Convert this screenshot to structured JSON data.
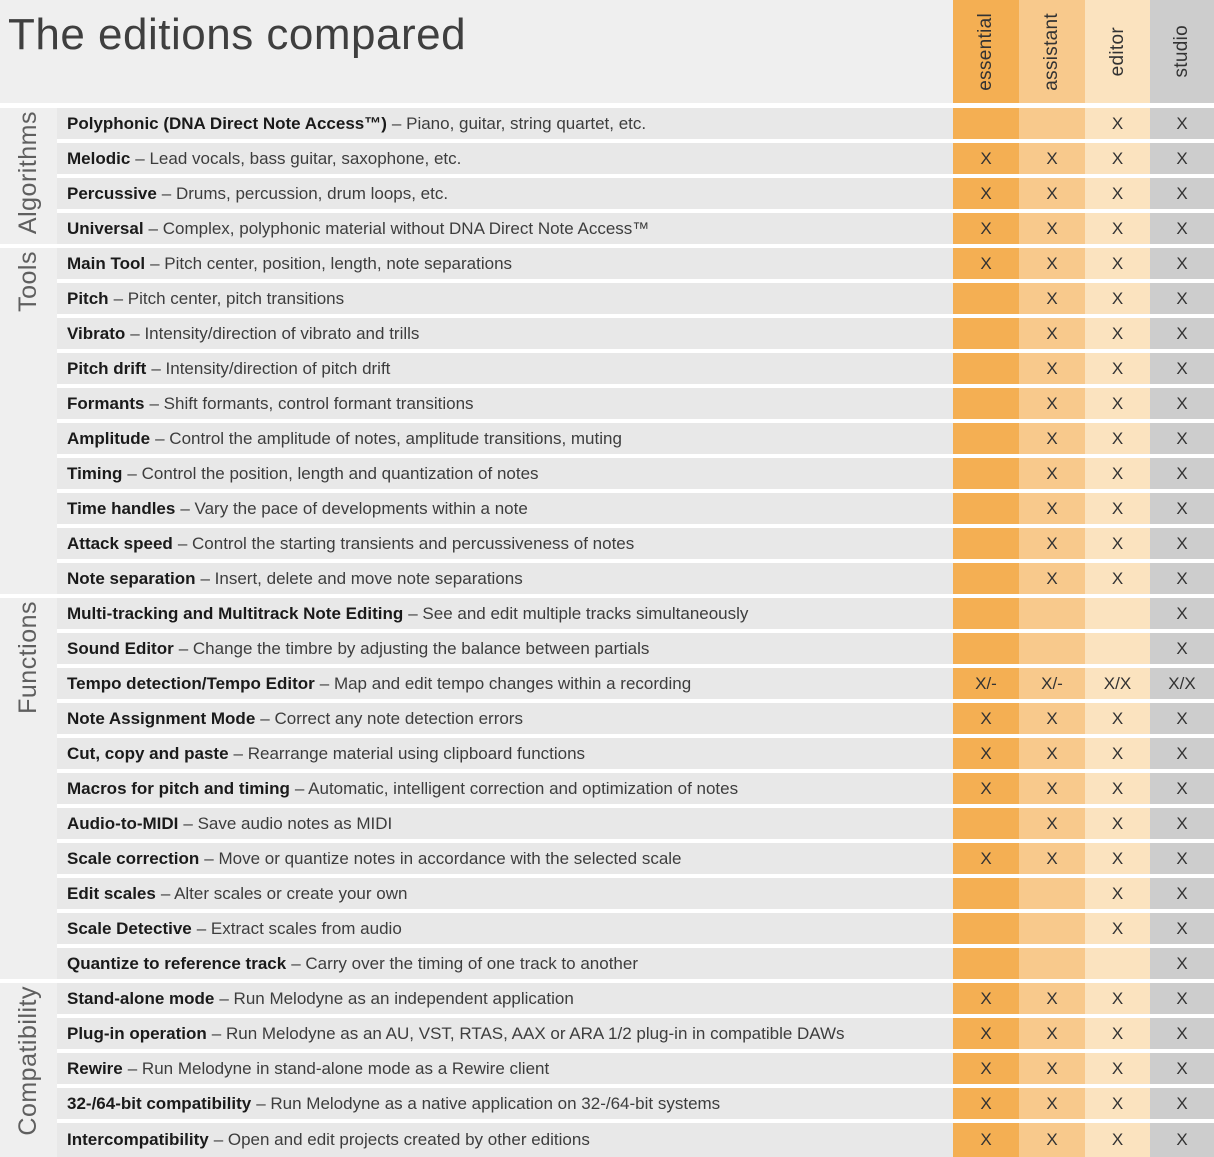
{
  "title": "The editions compared",
  "columns": [
    {
      "id": "essential",
      "label": "essential",
      "color": "#f4af53"
    },
    {
      "id": "assistant",
      "label": "assistant",
      "color": "#f8c98c"
    },
    {
      "id": "editor",
      "label": "editor",
      "color": "#fbe3bf"
    },
    {
      "id": "studio",
      "label": "studio",
      "color": "#cdcdcd"
    }
  ],
  "colors": {
    "page_bg": "#efefef",
    "row_bg": "#e8e8e8",
    "divider": "#ffffff",
    "title_text": "#3f3f3f",
    "term_text": "#1a1a1a",
    "desc_text": "#3d3d3d",
    "mark_text": "#333333",
    "section_label_text": "#5f5f5f"
  },
  "sections": [
    {
      "name": "Algorithms",
      "rows": [
        {
          "term": "Polyphonic (DNA Direct Note Access™)",
          "desc": "– Piano, guitar, string quartet, etc.",
          "marks": [
            "",
            "",
            "X",
            "X"
          ]
        },
        {
          "term": "Melodic",
          "desc": "– Lead vocals, bass guitar, saxophone, etc.",
          "marks": [
            "X",
            "X",
            "X",
            "X"
          ]
        },
        {
          "term": "Percussive",
          "desc": "– Drums, percussion, drum loops, etc.",
          "marks": [
            "X",
            "X",
            "X",
            "X"
          ]
        },
        {
          "term": "Universal",
          "desc": "– Complex, polyphonic material without DNA Direct Note Access™",
          "marks": [
            "X",
            "X",
            "X",
            "X"
          ]
        }
      ]
    },
    {
      "name": "Tools",
      "rows": [
        {
          "term": "Main Tool",
          "desc": "– Pitch center, position, length, note separations",
          "marks": [
            "X",
            "X",
            "X",
            "X"
          ]
        },
        {
          "term": "Pitch",
          "desc": "– Pitch center, pitch transitions",
          "marks": [
            "",
            "X",
            "X",
            "X"
          ]
        },
        {
          "term": "Vibrato",
          "desc": "– Intensity/direction of vibrato and trills",
          "marks": [
            "",
            "X",
            "X",
            "X"
          ]
        },
        {
          "term": "Pitch drift",
          "desc": "– Intensity/direction of pitch drift",
          "marks": [
            "",
            "X",
            "X",
            "X"
          ]
        },
        {
          "term": "Formants",
          "desc": "– Shift formants, control formant transitions",
          "marks": [
            "",
            "X",
            "X",
            "X"
          ]
        },
        {
          "term": "Amplitude",
          "desc": "– Control the amplitude of notes, amplitude transitions, muting",
          "marks": [
            "",
            "X",
            "X",
            "X"
          ]
        },
        {
          "term": "Timing",
          "desc": "– Control the position, length and quantization of notes",
          "marks": [
            "",
            "X",
            "X",
            "X"
          ]
        },
        {
          "term": "Time handles",
          "desc": "– Vary the pace of developments within a note",
          "marks": [
            "",
            "X",
            "X",
            "X"
          ]
        },
        {
          "term": "Attack speed",
          "desc": "– Control the starting transients and percussiveness of notes",
          "marks": [
            "",
            "X",
            "X",
            "X"
          ]
        },
        {
          "term": "Note separation",
          "desc": "– Insert, delete and move note separations",
          "marks": [
            "",
            "X",
            "X",
            "X"
          ]
        }
      ]
    },
    {
      "name": "Functions",
      "rows": [
        {
          "term": "Multi-tracking and Multitrack Note Editing",
          "desc": "– See and edit multiple tracks simultaneously",
          "marks": [
            "",
            "",
            "",
            "X"
          ]
        },
        {
          "term": "Sound Editor",
          "desc": "– Change the timbre by adjusting the balance between partials",
          "marks": [
            "",
            "",
            "",
            "X"
          ]
        },
        {
          "term": "Tempo detection/Tempo Editor",
          "desc": "– Map and edit tempo changes within a recording",
          "marks": [
            "X/-",
            "X/-",
            "X/X",
            "X/X"
          ]
        },
        {
          "term": "Note Assignment Mode",
          "desc": "– Correct any note detection errors",
          "marks": [
            "X",
            "X",
            "X",
            "X"
          ]
        },
        {
          "term": "Cut, copy and paste",
          "desc": "– Rearrange material using clipboard functions",
          "marks": [
            "X",
            "X",
            "X",
            "X"
          ]
        },
        {
          "term": "Macros for pitch and timing",
          "desc": "– Automatic, intelligent correction and optimization of notes",
          "marks": [
            "X",
            "X",
            "X",
            "X"
          ]
        },
        {
          "term": "Audio-to-MIDI",
          "desc": "– Save audio notes as MIDI",
          "marks": [
            "",
            "X",
            "X",
            "X"
          ]
        },
        {
          "term": "Scale correction",
          "desc": "– Move or quantize notes in accordance with the selected scale",
          "marks": [
            "X",
            "X",
            "X",
            "X"
          ]
        },
        {
          "term": "Edit scales",
          "desc": "– Alter scales or create your own",
          "marks": [
            "",
            "",
            "X",
            "X"
          ]
        },
        {
          "term": "Scale Detective",
          "desc": "– Extract scales from audio",
          "marks": [
            "",
            "",
            "X",
            "X"
          ]
        },
        {
          "term": "Quantize to reference track",
          "desc": "– Carry over the timing of one track to another",
          "marks": [
            "",
            "",
            "",
            "X"
          ]
        }
      ]
    },
    {
      "name": "Compatibility",
      "rows": [
        {
          "term": "Stand-alone mode",
          "desc": "– Run Melodyne as an independent application",
          "marks": [
            "X",
            "X",
            "X",
            "X"
          ]
        },
        {
          "term": "Plug-in operation",
          "desc": "– Run Melodyne as an AU, VST, RTAS, AAX or ARA 1/2 plug-in in compatible DAWs",
          "marks": [
            "X",
            "X",
            "X",
            "X"
          ]
        },
        {
          "term": "Rewire",
          "desc": "– Run Melodyne in stand-alone mode as a Rewire client",
          "marks": [
            "X",
            "X",
            "X",
            "X"
          ]
        },
        {
          "term": "32-/64-bit compatibility",
          "desc": "– Run Melodyne as a native application on 32-/64-bit systems",
          "marks": [
            "X",
            "X",
            "X",
            "X"
          ]
        },
        {
          "term": "Intercompatibility",
          "desc": "– Open and edit projects created by other editions",
          "marks": [
            "X",
            "X",
            "X",
            "X"
          ]
        }
      ]
    }
  ]
}
